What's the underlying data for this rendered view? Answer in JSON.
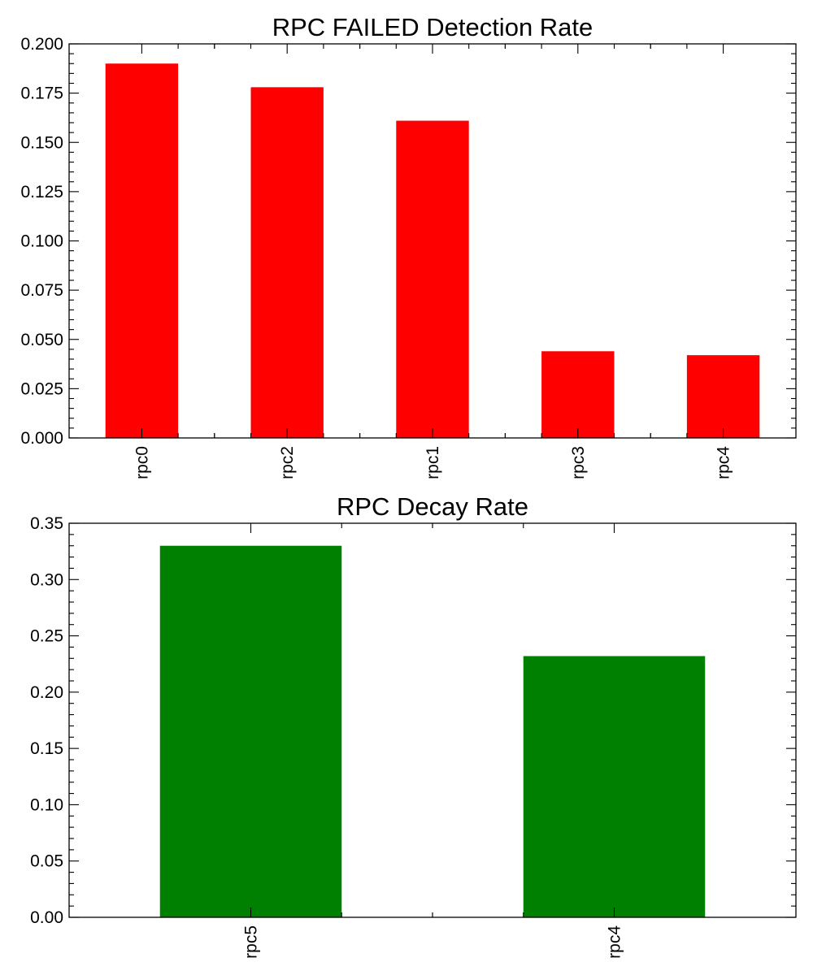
{
  "chart_data": [
    {
      "type": "bar",
      "title": "RPC FAILED Detection Rate",
      "xlabel": "",
      "ylabel": "",
      "categories": [
        "rpc0",
        "rpc2",
        "rpc1",
        "rpc3",
        "rpc4"
      ],
      "values": [
        0.19,
        0.178,
        0.161,
        0.044,
        0.042
      ],
      "ylim": [
        0,
        0.2
      ],
      "yticks": [
        "0.000",
        "0.025",
        "0.050",
        "0.075",
        "0.100",
        "0.125",
        "0.150",
        "0.175",
        "0.200"
      ],
      "bar_color": "#ff0000",
      "grid": false,
      "legend": "none"
    },
    {
      "type": "bar",
      "title": "RPC Decay Rate",
      "xlabel": "",
      "ylabel": "",
      "categories": [
        "rpc5",
        "rpc4"
      ],
      "values": [
        0.33,
        0.232
      ],
      "ylim": [
        0,
        0.35
      ],
      "yticks": [
        "0.00",
        "0.05",
        "0.10",
        "0.15",
        "0.20",
        "0.25",
        "0.30",
        "0.35"
      ],
      "bar_color": "#008000",
      "grid": false,
      "legend": "none"
    }
  ]
}
